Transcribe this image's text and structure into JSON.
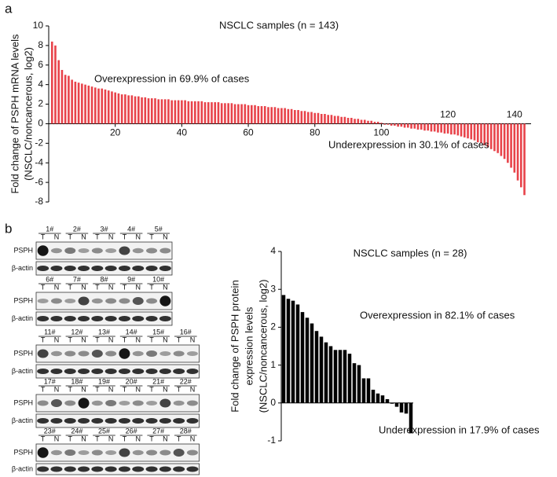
{
  "panel_labels": [
    "a",
    "b"
  ],
  "chart_data": [
    {
      "type": "bar",
      "title": "NSCLC samples (n = 143)",
      "ylabel": [
        "Fold change of PSPH mRNA levels",
        "(NSCLC/noncancerous, log2)"
      ],
      "annotations": [
        "Overexpression in 69.9% of cases",
        "Underexpression in 30.1% of cases"
      ],
      "color": "#e8434a",
      "x": [
        1,
        2,
        3,
        4,
        5,
        6,
        7,
        8,
        9,
        10,
        11,
        12,
        13,
        14,
        15,
        16,
        17,
        18,
        19,
        20,
        21,
        22,
        23,
        24,
        25,
        26,
        27,
        28,
        29,
        30,
        31,
        32,
        33,
        34,
        35,
        36,
        37,
        38,
        39,
        40,
        41,
        42,
        43,
        44,
        45,
        46,
        47,
        48,
        49,
        50,
        51,
        52,
        53,
        54,
        55,
        56,
        57,
        58,
        59,
        60,
        61,
        62,
        63,
        64,
        65,
        66,
        67,
        68,
        69,
        70,
        71,
        72,
        73,
        74,
        75,
        76,
        77,
        78,
        79,
        80,
        81,
        82,
        83,
        84,
        85,
        86,
        87,
        88,
        89,
        90,
        91,
        92,
        93,
        94,
        95,
        96,
        97,
        98,
        99,
        100,
        101,
        102,
        103,
        104,
        105,
        106,
        107,
        108,
        109,
        110,
        111,
        112,
        113,
        114,
        115,
        116,
        117,
        118,
        119,
        120,
        121,
        122,
        123,
        124,
        125,
        126,
        127,
        128,
        129,
        130,
        131,
        132,
        133,
        134,
        135,
        136,
        137,
        138,
        139,
        140,
        141,
        142,
        143
      ],
      "values": [
        8.4,
        8.0,
        6.5,
        5.5,
        5.0,
        4.9,
        4.5,
        4.3,
        4.2,
        4.1,
        4.0,
        3.9,
        3.8,
        3.7,
        3.6,
        3.6,
        3.5,
        3.4,
        3.3,
        3.2,
        3.1,
        3.0,
        3.0,
        2.9,
        2.9,
        2.8,
        2.8,
        2.7,
        2.7,
        2.6,
        2.6,
        2.6,
        2.5,
        2.5,
        2.5,
        2.5,
        2.4,
        2.4,
        2.4,
        2.4,
        2.4,
        2.3,
        2.3,
        2.3,
        2.3,
        2.3,
        2.2,
        2.2,
        2.2,
        2.2,
        2.2,
        2.1,
        2.1,
        2.1,
        2.1,
        2.0,
        2.0,
        2.0,
        2.0,
        1.9,
        1.9,
        1.9,
        1.8,
        1.8,
        1.8,
        1.7,
        1.7,
        1.7,
        1.6,
        1.6,
        1.6,
        1.5,
        1.5,
        1.4,
        1.4,
        1.3,
        1.3,
        1.2,
        1.2,
        1.1,
        1.1,
        1.0,
        1.0,
        0.9,
        0.9,
        0.8,
        0.8,
        0.7,
        0.7,
        0.6,
        0.6,
        0.5,
        0.5,
        0.4,
        0.4,
        0.3,
        0.3,
        0.2,
        0.2,
        0.1,
        -0.1,
        -0.1,
        -0.2,
        -0.2,
        -0.3,
        -0.3,
        -0.4,
        -0.4,
        -0.5,
        -0.5,
        -0.6,
        -0.6,
        -0.7,
        -0.7,
        -0.8,
        -0.8,
        -0.9,
        -0.9,
        -1.0,
        -1.0,
        -1.1,
        -1.1,
        -1.2,
        -1.3,
        -1.4,
        -1.5,
        -1.6,
        -1.7,
        -1.9,
        -2.0,
        -2.2,
        -2.4,
        -2.6,
        -2.8,
        -3.0,
        -3.3,
        -3.6,
        -4.0,
        -4.5,
        -5.0,
        -5.8,
        -6.5,
        -7.3
      ],
      "xlim": [
        0,
        145
      ],
      "xticks": [
        20,
        40,
        60,
        80,
        100,
        120,
        140
      ],
      "ylim": [
        -8,
        10
      ],
      "yticks": [
        -8,
        -6,
        -4,
        -2,
        0,
        2,
        4,
        6,
        8,
        10
      ]
    },
    {
      "type": "bar",
      "title": "NSCLC samples (n = 28)",
      "ylabel": [
        "Fold change of PSPH protein",
        "expression levels",
        "(NSCLC/noncancerous, log2)"
      ],
      "annotations": [
        "Overexpression in 82.1% of cases",
        "Underexpression in 17.9% of cases"
      ],
      "color": "#000000",
      "categories": [
        null,
        null,
        null,
        null,
        null,
        null,
        null,
        null,
        null,
        null,
        null,
        null,
        null,
        null,
        null,
        null,
        null,
        null,
        null,
        null,
        null,
        null,
        null,
        null,
        null,
        null,
        null,
        null
      ],
      "values": [
        2.85,
        2.75,
        2.7,
        2.6,
        2.4,
        2.25,
        2.1,
        1.9,
        1.75,
        1.6,
        1.5,
        1.4,
        1.4,
        1.4,
        1.3,
        1.05,
        1.0,
        0.65,
        0.65,
        0.35,
        0.25,
        0.2,
        0.1,
        -0.02,
        -0.1,
        -0.25,
        -0.28,
        -0.8
      ],
      "ylim": [
        -1,
        4
      ],
      "yticks": [
        -1,
        0,
        1,
        2,
        3,
        4
      ]
    }
  ],
  "blots": {
    "row_labels": [
      "PSPH",
      "β-actin"
    ],
    "lane_labels": [
      "T",
      "N"
    ],
    "groups": [
      [
        "1#",
        "2#",
        "3#",
        "4#",
        "5#"
      ],
      [
        "6#",
        "7#",
        "8#",
        "9#",
        "10#"
      ],
      [
        "11#",
        "12#",
        "13#",
        "14#",
        "15#",
        "16#"
      ],
      [
        "17#",
        "18#",
        "19#",
        "20#",
        "21#",
        "22#"
      ],
      [
        "23#",
        "24#",
        "25#",
        "26#",
        "27#",
        "28#"
      ]
    ]
  }
}
